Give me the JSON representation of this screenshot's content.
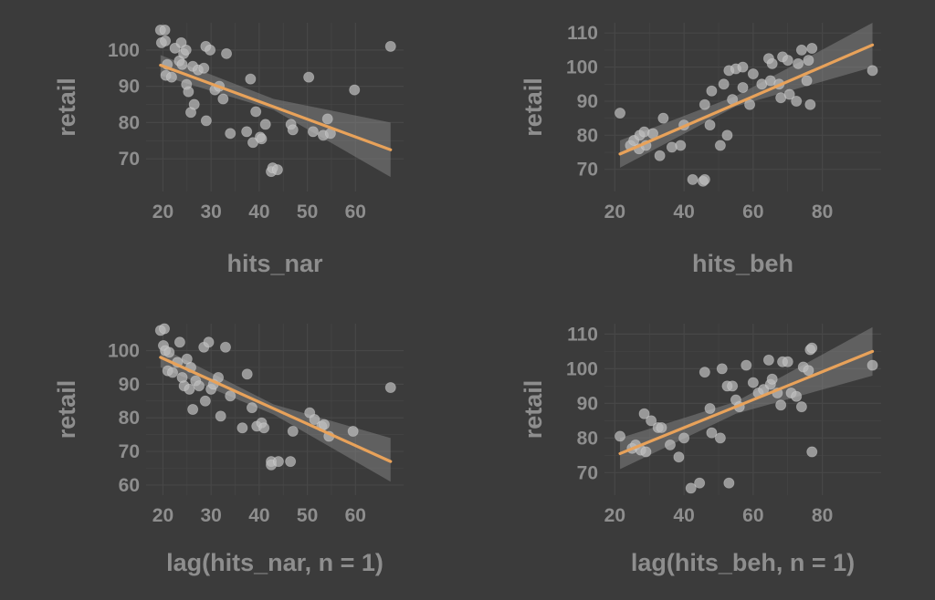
{
  "figure": {
    "background": "#3b3b3b",
    "grid_color": "#474747",
    "text_color": "#8e8e8e"
  },
  "chart_data": [
    {
      "type": "scatter",
      "title": "",
      "xlabel": "hits_nar",
      "ylabel": "retail",
      "xlim": [
        16.5,
        70
      ],
      "ylim": [
        61,
        107.5
      ],
      "xticks": [
        20,
        30,
        40,
        50,
        60
      ],
      "yticks": [
        70,
        80,
        90,
        100
      ],
      "grid": true,
      "point_color": "#bdbdbd",
      "line_color": "#e8a25a",
      "band_color": "#808080",
      "points": [
        [
          19.5,
          105.5
        ],
        [
          20.4,
          105.5
        ],
        [
          19.7,
          102
        ],
        [
          20.5,
          102.5
        ],
        [
          20.6,
          93
        ],
        [
          20.9,
          96
        ],
        [
          21.8,
          92.5
        ],
        [
          22.5,
          100.5
        ],
        [
          23.4,
          97
        ],
        [
          23.8,
          102
        ],
        [
          24,
          96
        ],
        [
          24.3,
          99
        ],
        [
          24.8,
          100
        ],
        [
          24.9,
          90.5
        ],
        [
          25.3,
          88.5
        ],
        [
          25.8,
          82.8
        ],
        [
          26.2,
          95.5
        ],
        [
          26.5,
          85
        ],
        [
          27.3,
          94.5
        ],
        [
          28.5,
          95
        ],
        [
          28.9,
          101
        ],
        [
          29,
          80.5
        ],
        [
          29.8,
          100
        ],
        [
          30.8,
          89
        ],
        [
          31.7,
          90
        ],
        [
          32.5,
          86.5
        ],
        [
          33.2,
          99
        ],
        [
          34,
          77
        ],
        [
          37.4,
          77.5
        ],
        [
          38.2,
          92
        ],
        [
          38.7,
          74.5
        ],
        [
          39.3,
          83
        ],
        [
          40.2,
          76
        ],
        [
          40.5,
          75.5
        ],
        [
          41.3,
          79.5
        ],
        [
          42.5,
          66.5
        ],
        [
          42.8,
          67.5
        ],
        [
          43.8,
          67
        ],
        [
          46.6,
          79.5
        ],
        [
          47,
          78
        ],
        [
          50.3,
          92.5
        ],
        [
          51.2,
          77.5
        ],
        [
          53.3,
          76.5
        ],
        [
          54.2,
          81
        ],
        [
          54.8,
          77
        ],
        [
          59.8,
          89
        ],
        [
          67.3,
          101
        ]
      ],
      "fit": {
        "x": [
          19.5,
          67.3
        ],
        "y": [
          95.8,
          72.5
        ]
      },
      "band": {
        "x": [
          19.5,
          43,
          67.3
        ],
        "lower": [
          93,
          83.5,
          65
        ],
        "upper": [
          98.6,
          86.5,
          80
        ]
      }
    },
    {
      "type": "scatter",
      "title": "",
      "xlabel": "hits_beh",
      "ylabel": "retail",
      "xlim": [
        17,
        97
      ],
      "ylim": [
        63.5,
        113
      ],
      "xticks": [
        20,
        40,
        60,
        80
      ],
      "yticks": [
        70,
        80,
        90,
        100,
        110
      ],
      "grid": true,
      "point_color": "#bdbdbd",
      "line_color": "#e8a25a",
      "band_color": "#808080",
      "points": [
        [
          21.5,
          86.5
        ],
        [
          24.5,
          77
        ],
        [
          25.5,
          78.5
        ],
        [
          27,
          76
        ],
        [
          27.2,
          80
        ],
        [
          28.5,
          81
        ],
        [
          29,
          77
        ],
        [
          31,
          80.5
        ],
        [
          33,
          74
        ],
        [
          34,
          85
        ],
        [
          36.5,
          76.5
        ],
        [
          39,
          77
        ],
        [
          40,
          83
        ],
        [
          42.5,
          67
        ],
        [
          45.5,
          66.5
        ],
        [
          46,
          67
        ],
        [
          46,
          89
        ],
        [
          47.5,
          83
        ],
        [
          48,
          93
        ],
        [
          50.5,
          77
        ],
        [
          51.5,
          95
        ],
        [
          52.5,
          80
        ],
        [
          53,
          99
        ],
        [
          54,
          90.5
        ],
        [
          55,
          99.5
        ],
        [
          57,
          100
        ],
        [
          57,
          94
        ],
        [
          59,
          89
        ],
        [
          60,
          98
        ],
        [
          62.5,
          95
        ],
        [
          64.5,
          102.5
        ],
        [
          65,
          96
        ],
        [
          65.5,
          101
        ],
        [
          67.5,
          95
        ],
        [
          68,
          91
        ],
        [
          68.5,
          103
        ],
        [
          70,
          102
        ],
        [
          70.5,
          92
        ],
        [
          72.5,
          90
        ],
        [
          73,
          101
        ],
        [
          74,
          105
        ],
        [
          75.5,
          96
        ],
        [
          76,
          102
        ],
        [
          76.5,
          89
        ],
        [
          77,
          105.5
        ],
        [
          94.5,
          99
        ]
      ],
      "fit": {
        "x": [
          21.5,
          94.5
        ],
        "y": [
          74.5,
          106.5
        ]
      },
      "band": {
        "x": [
          21.5,
          55,
          94.5
        ],
        "lower": [
          70.5,
          88.5,
          100
        ],
        "upper": [
          78.5,
          91.5,
          113
        ]
      }
    },
    {
      "type": "scatter",
      "title": "",
      "xlabel": "lag(hits_nar, n = 1)",
      "ylabel": "retail",
      "xlim": [
        16.5,
        70
      ],
      "ylim": [
        57,
        108
      ],
      "xticks": [
        20,
        30,
        40,
        50,
        60
      ],
      "yticks": [
        60,
        70,
        80,
        90,
        100
      ],
      "grid": true,
      "point_color": "#bdbdbd",
      "line_color": "#e8a25a",
      "band_color": "#808080",
      "points": [
        [
          19.5,
          106
        ],
        [
          20.3,
          106.5
        ],
        [
          20.1,
          101.5
        ],
        [
          20.5,
          100
        ],
        [
          21,
          94
        ],
        [
          21.3,
          99.5
        ],
        [
          22,
          93.5
        ],
        [
          23,
          96.5
        ],
        [
          23.5,
          102.5
        ],
        [
          24,
          92
        ],
        [
          24.4,
          89.5
        ],
        [
          25,
          97.5
        ],
        [
          25.5,
          88.5
        ],
        [
          25.8,
          95
        ],
        [
          26.2,
          82.5
        ],
        [
          26.8,
          91
        ],
        [
          27.5,
          89.5
        ],
        [
          28.5,
          101
        ],
        [
          28.8,
          85
        ],
        [
          29.5,
          102.5
        ],
        [
          30,
          88.5
        ],
        [
          30.5,
          90
        ],
        [
          31.5,
          92
        ],
        [
          32,
          80.5
        ],
        [
          33,
          101
        ],
        [
          34,
          86.5
        ],
        [
          36.5,
          77
        ],
        [
          37.5,
          93
        ],
        [
          38.5,
          83
        ],
        [
          39.5,
          77.5
        ],
        [
          40.5,
          78.5
        ],
        [
          41,
          77
        ],
        [
          42.5,
          67
        ],
        [
          42.5,
          66
        ],
        [
          44,
          67
        ],
        [
          46.5,
          67
        ],
        [
          47,
          76
        ],
        [
          50.5,
          81.5
        ],
        [
          51.5,
          79.5
        ],
        [
          53,
          77.5
        ],
        [
          53.5,
          78
        ],
        [
          54.5,
          74.5
        ],
        [
          59.5,
          76
        ],
        [
          67.3,
          89
        ]
      ],
      "fit": {
        "x": [
          19.5,
          67.3
        ],
        "y": [
          98,
          67
        ]
      },
      "band": {
        "x": [
          19.5,
          43,
          67.3
        ],
        "lower": [
          95,
          81,
          61
        ],
        "upper": [
          101,
          84,
          74
        ]
      }
    },
    {
      "type": "scatter",
      "title": "",
      "xlabel": "lag(hits_beh, n = 1)",
      "ylabel": "retail",
      "xlim": [
        17,
        97
      ],
      "ylim": [
        63.5,
        113
      ],
      "xticks": [
        20,
        40,
        60,
        80
      ],
      "yticks": [
        70,
        80,
        90,
        100,
        110
      ],
      "grid": true,
      "point_color": "#bdbdbd",
      "line_color": "#e8a25a",
      "band_color": "#808080",
      "points": [
        [
          21.5,
          80.5
        ],
        [
          25,
          77
        ],
        [
          26,
          78
        ],
        [
          27.5,
          76.5
        ],
        [
          28.5,
          87
        ],
        [
          29,
          76
        ],
        [
          30.5,
          85
        ],
        [
          32.5,
          83
        ],
        [
          33.5,
          83
        ],
        [
          36,
          78
        ],
        [
          38.5,
          74.5
        ],
        [
          40,
          80
        ],
        [
          42,
          65.5
        ],
        [
          44.5,
          67
        ],
        [
          46,
          99
        ],
        [
          47.5,
          88.5
        ],
        [
          48,
          81.5
        ],
        [
          50.5,
          80
        ],
        [
          51,
          100
        ],
        [
          52.5,
          95
        ],
        [
          53,
          67
        ],
        [
          54,
          95
        ],
        [
          55,
          91
        ],
        [
          56,
          89
        ],
        [
          58,
          101
        ],
        [
          60,
          96
        ],
        [
          61.5,
          93
        ],
        [
          63,
          94
        ],
        [
          64.5,
          102.5
        ],
        [
          65,
          95.5
        ],
        [
          65.5,
          97
        ],
        [
          67,
          93
        ],
        [
          68,
          89.5
        ],
        [
          68.5,
          102
        ],
        [
          70,
          102
        ],
        [
          71,
          93
        ],
        [
          72.5,
          92
        ],
        [
          74,
          89
        ],
        [
          74.5,
          100.5
        ],
        [
          76,
          99.5
        ],
        [
          76.5,
          105.5
        ],
        [
          77,
          106
        ],
        [
          77,
          76
        ],
        [
          94.5,
          101
        ]
      ],
      "fit": {
        "x": [
          21.5,
          94.5
        ],
        "y": [
          75.5,
          105
        ]
      },
      "band": {
        "x": [
          21.5,
          55,
          94.5
        ],
        "lower": [
          71,
          87,
          98
        ],
        "upper": [
          80,
          90.5,
          112
        ]
      }
    }
  ]
}
